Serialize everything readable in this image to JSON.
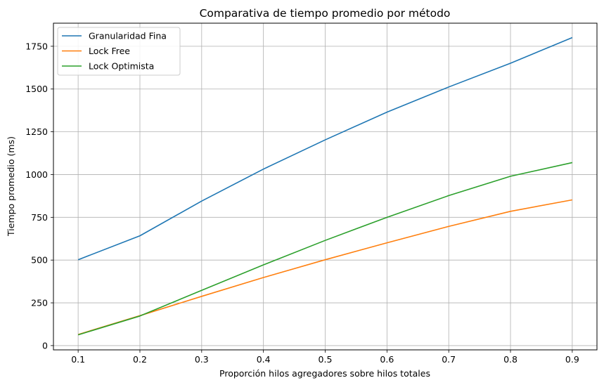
{
  "chart_data": {
    "type": "line",
    "title": "Comparativa de tiempo promedio por método",
    "xlabel": "Proporción hilos agregadores sobre hilos totales",
    "ylabel": "Tiempo promedio (ms)",
    "x": [
      0.1,
      0.2,
      0.3,
      0.4,
      0.5,
      0.6,
      0.7,
      0.8,
      0.9
    ],
    "x_ticks": [
      "0.1",
      "0.2",
      "0.3",
      "0.4",
      "0.5",
      "0.6",
      "0.7",
      "0.8",
      "0.9"
    ],
    "y_ticks": [
      "0",
      "250",
      "500",
      "750",
      "1000",
      "1250",
      "1500",
      "1750"
    ],
    "xlim": [
      0.06,
      0.94
    ],
    "ylim": [
      -25,
      1885
    ],
    "grid": true,
    "legend_position": "top-left",
    "series": [
      {
        "name": "Granularidad Fina",
        "color": "#1f77b4",
        "values": [
          502,
          642,
          845,
          1032,
          1203,
          1365,
          1512,
          1651,
          1801
        ]
      },
      {
        "name": "Lock Free",
        "color": "#ff7f0e",
        "values": [
          65,
          175,
          288,
          398,
          502,
          601,
          697,
          785,
          852
        ]
      },
      {
        "name": "Lock Optimista",
        "color": "#2ca02c",
        "values": [
          63,
          173,
          323,
          472,
          615,
          750,
          877,
          990,
          1070
        ]
      }
    ]
  }
}
